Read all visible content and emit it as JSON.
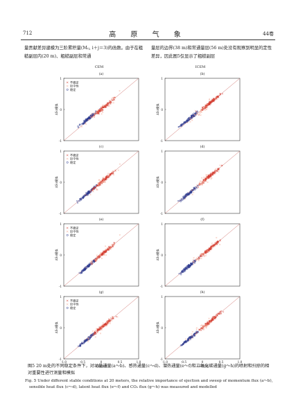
{
  "header": {
    "page_number": "712",
    "journal_title": "高 原 气 象",
    "volume": "44卷"
  },
  "body_text": {
    "left": "量贡献差异建模为三阶累积量(Mᵢⱼ, i＋j＝3)的函数。由于在粗糙副层内(20 m)、粗糙副层和常通",
    "right": "量层的边界(38 m)和常通量层(56 m)处没有观察到明显的定性差异，因此图5仅显示了粗糙副层"
  },
  "columns": {
    "left": "CEM",
    "right": "ICEM"
  },
  "legend": {
    "unstable": "不稳定",
    "near_neutral": "近中性",
    "stable": "稳定"
  },
  "colors": {
    "unstable": "#d23a2e",
    "near_neutral": "#f2a08a",
    "stable": "#2c3a8f",
    "one_to_one": "#d0706a"
  },
  "axes": {
    "xlabel": "ΔSo实测",
    "ylabel": "ΔSo模拟",
    "xticks": [
      "-1.0",
      "-0.5",
      "0",
      "0.5",
      "1.0"
    ],
    "yticks": [
      "1",
      "0",
      "-1"
    ]
  },
  "panels": [
    {
      "label": "(a)",
      "has_legend": true
    },
    {
      "label": "(b)",
      "has_legend": false
    },
    {
      "label": "(c)",
      "has_legend": true
    },
    {
      "label": "(d)",
      "has_legend": false
    },
    {
      "label": "(e)",
      "has_legend": true
    },
    {
      "label": "(f)",
      "has_legend": false
    },
    {
      "label": "(g)",
      "has_legend": true
    },
    {
      "label": "(h)",
      "has_legend": false
    }
  ],
  "caption": {
    "cn": "图5  20 m处的不同稳定条件下，对动量通量(a～b)、感热通量(c～d)、潜热通量(e～f)和二氧化碳通量(g～h)的喷射和扫掠的相对重要性进行测量和模拟",
    "en_1": "Fig. 5  Under different stable conditions at 20 meters, the relative importance of ejection and sweep of momentum flux (a～b),",
    "en_2": "sensible heat flux (c～d), latent heat flux (e～f) and CO₂ flux (g～h) was measured and modelled"
  },
  "chart_data": {
    "type": "scatter",
    "xlabel": "ΔSo实测",
    "ylabel": "ΔSo模拟",
    "xlim": [
      -1,
      1
    ],
    "ylim": [
      -1,
      1
    ],
    "series": [
      {
        "name": "不稳定"
      },
      {
        "name": "近中性"
      },
      {
        "name": "稳定"
      }
    ]
  }
}
